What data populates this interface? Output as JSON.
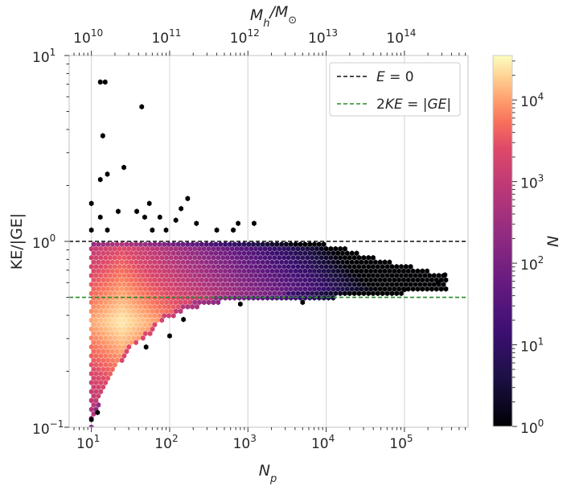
{
  "chart_data": {
    "type": "hexbin",
    "xlabel": "N_p",
    "ylabel": "KE/|GE|",
    "top_xlabel": "M_h/M_⊙",
    "colorbar_label": "N",
    "x_scale": "log",
    "y_scale": "log",
    "xlim": [
      5.2,
      650000
    ],
    "ylim": [
      0.1,
      10
    ],
    "top_xlim_Msun": [
      5200000000.0,
      650000000000000.0
    ],
    "color_lim": [
      1,
      35000
    ],
    "x_ticks": [
      {
        "v": 10,
        "base": "10",
        "exp": "1"
      },
      {
        "v": 100,
        "base": "10",
        "exp": "2"
      },
      {
        "v": 1000,
        "base": "10",
        "exp": "3"
      },
      {
        "v": 10000,
        "base": "10",
        "exp": "4"
      },
      {
        "v": 100000,
        "base": "10",
        "exp": "5"
      }
    ],
    "top_x_ticks": [
      {
        "v": 10000000000.0,
        "base": "10",
        "exp": "10"
      },
      {
        "v": 100000000000.0,
        "base": "10",
        "exp": "11"
      },
      {
        "v": 1000000000000.0,
        "base": "10",
        "exp": "12"
      },
      {
        "v": 10000000000000.0,
        "base": "10",
        "exp": "13"
      },
      {
        "v": 100000000000000.0,
        "base": "10",
        "exp": "14"
      }
    ],
    "y_ticks": [
      {
        "v": 0.1,
        "base": "10",
        "exp": "−1"
      },
      {
        "v": 1,
        "base": "10",
        "exp": "0"
      },
      {
        "v": 10,
        "base": "10",
        "exp": "1"
      }
    ],
    "colorbar_ticks": [
      {
        "v": 1,
        "base": "10",
        "exp": "0"
      },
      {
        "v": 10,
        "base": "10",
        "exp": "1"
      },
      {
        "v": 100,
        "base": "10",
        "exp": "2"
      },
      {
        "v": 1000,
        "base": "10",
        "exp": "3"
      },
      {
        "v": 10000,
        "base": "10",
        "exp": "4"
      }
    ],
    "reference_lines": [
      {
        "name": "E = 0",
        "y": 1.0,
        "color": "#111111",
        "style": "dashed"
      },
      {
        "name": "2KE = |GE|",
        "y": 0.5,
        "color": "#2a8a2a",
        "style": "dashed"
      }
    ],
    "legend_position": "upper right",
    "distribution": {
      "upper_bound_y": 1.0,
      "lower_envelope": [
        [
          10,
          0.1
        ],
        [
          14,
          0.15
        ],
        [
          20,
          0.2
        ],
        [
          30,
          0.26
        ],
        [
          50,
          0.3
        ],
        [
          80,
          0.37
        ],
        [
          150,
          0.42
        ],
        [
          300,
          0.46
        ],
        [
          700,
          0.48
        ],
        [
          3000,
          0.49
        ],
        [
          30000,
          0.5
        ],
        [
          300000,
          0.55
        ]
      ],
      "upper_envelope": [
        [
          10,
          1.0
        ],
        [
          1000,
          1.0
        ],
        [
          8000,
          0.99
        ],
        [
          20000,
          0.9
        ],
        [
          60000,
          0.78
        ],
        [
          150000,
          0.72
        ],
        [
          300000,
          0.66
        ]
      ],
      "peak_region": {
        "x": [
          15,
          40
        ],
        "y": [
          0.3,
          0.45
        ],
        "count_approx": 30000
      }
    },
    "outliers": [
      [
        13,
        7.2
      ],
      [
        15,
        7.2
      ],
      [
        44,
        5.3
      ],
      [
        14,
        3.7
      ],
      [
        26,
        2.5
      ],
      [
        16,
        2.3
      ],
      [
        13,
        2.15
      ],
      [
        170,
        1.7
      ],
      [
        10,
        1.6
      ],
      [
        55,
        1.6
      ],
      [
        140,
        1.5
      ],
      [
        22,
        1.45
      ],
      [
        38,
        1.45
      ],
      [
        13,
        1.35
      ],
      [
        75,
        1.35
      ],
      [
        48,
        1.35
      ],
      [
        120,
        1.3
      ],
      [
        220,
        1.25
      ],
      [
        750,
        1.25
      ],
      [
        1200,
        1.25
      ],
      [
        10,
        1.15
      ],
      [
        16,
        1.15
      ],
      [
        60,
        1.15
      ],
      [
        90,
        1.15
      ],
      [
        400,
        1.15
      ],
      [
        650,
        1.15
      ],
      [
        10,
        0.11
      ],
      [
        12,
        0.12
      ],
      [
        100000,
        0.55
      ],
      [
        270000,
        0.6
      ],
      [
        330000,
        0.66
      ],
      [
        5000,
        0.47
      ],
      [
        800,
        0.46
      ],
      [
        50,
        0.27
      ],
      [
        100,
        0.31
      ],
      [
        150,
        0.38
      ]
    ]
  }
}
